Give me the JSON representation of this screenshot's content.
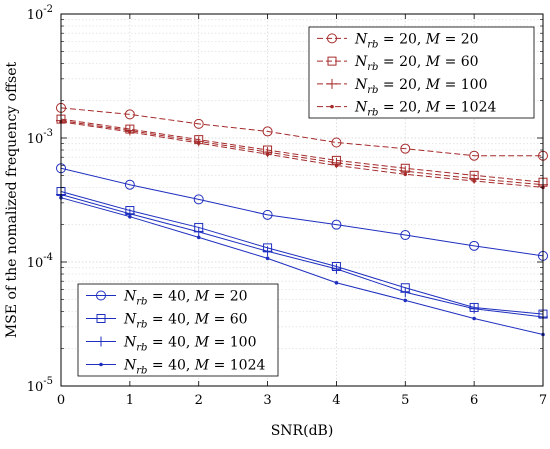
{
  "chart_data": {
    "type": "line",
    "xlabel": "SNR(dB)",
    "ylabel": "MSE of the nomalized frequency offset",
    "x": [
      0,
      1,
      2,
      3,
      4,
      5,
      6,
      7
    ],
    "xticks": [
      "0",
      "1",
      "2",
      "3",
      "4",
      "5",
      "6",
      "7"
    ],
    "xlim": [
      0,
      7
    ],
    "ylim": [
      1e-05,
      0.01
    ],
    "yscale": "log",
    "yticks": [
      {
        "value": 1e-05,
        "base": "10",
        "exp": "-5"
      },
      {
        "value": 0.0001,
        "base": "10",
        "exp": "-4"
      },
      {
        "value": 0.001,
        "base": "10",
        "exp": "-3"
      },
      {
        "value": 0.01,
        "base": "10",
        "exp": "-2"
      }
    ],
    "grid": true,
    "legends": [
      {
        "placement": "top-right",
        "series": [
          0,
          1,
          2,
          3
        ]
      },
      {
        "placement": "bottom-left",
        "series": [
          4,
          5,
          6,
          7
        ]
      }
    ],
    "series": [
      {
        "name": "N_rb = 20, M = 20",
        "label": {
          "n": "20",
          "m": "20"
        },
        "color": "#a52a2a",
        "dash": "dashed",
        "marker": "circle",
        "values": [
          0.00175,
          0.00155,
          0.0013,
          0.00113,
          0.00092,
          0.00082,
          0.00072,
          0.00072
        ]
      },
      {
        "name": "N_rb = 20, M = 60",
        "label": {
          "n": "20",
          "m": "60"
        },
        "color": "#a52a2a",
        "dash": "dashed",
        "marker": "square",
        "values": [
          0.00142,
          0.00118,
          0.00097,
          0.0008,
          0.00066,
          0.00057,
          0.0005,
          0.00044
        ]
      },
      {
        "name": "N_rb = 20, M = 100",
        "label": {
          "n": "20",
          "m": "100"
        },
        "color": "#a52a2a",
        "dash": "dashed",
        "marker": "plus",
        "values": [
          0.00138,
          0.00115,
          0.00094,
          0.00077,
          0.00063,
          0.00054,
          0.00047,
          0.00042
        ]
      },
      {
        "name": "N_rb = 20, M = 1024",
        "label": {
          "n": "20",
          "m": "1024"
        },
        "color": "#a52a2a",
        "dash": "dashed",
        "marker": "dot",
        "values": [
          0.00135,
          0.00112,
          0.00091,
          0.00074,
          0.0006,
          0.00051,
          0.00045,
          0.0004
        ]
      },
      {
        "name": "N_rb = 40, M = 20",
        "label": {
          "n": "40",
          "m": "20"
        },
        "color": "#1f2fbf",
        "dash": "solid",
        "marker": "circle",
        "values": [
          0.00057,
          0.00042,
          0.00032,
          0.00024,
          0.0002,
          0.000165,
          0.000135,
          0.000112
        ]
      },
      {
        "name": "N_rb = 40, M = 60",
        "label": {
          "n": "40",
          "m": "60"
        },
        "color": "#1f2fbf",
        "dash": "solid",
        "marker": "square",
        "values": [
          0.00037,
          0.00026,
          0.00019,
          0.00013,
          9.2e-05,
          6.2e-05,
          4.3e-05,
          3.8e-05
        ]
      },
      {
        "name": "N_rb = 40, M = 100",
        "label": {
          "n": "40",
          "m": "100"
        },
        "color": "#1f2fbf",
        "dash": "solid",
        "marker": "plus",
        "values": [
          0.00035,
          0.000245,
          0.000175,
          0.000122,
          8.8e-05,
          5.7e-05,
          4.2e-05,
          3.6e-05
        ]
      },
      {
        "name": "N_rb = 40, M = 1024",
        "label": {
          "n": "40",
          "m": "1024"
        },
        "color": "#1f2fbf",
        "dash": "solid",
        "marker": "dot",
        "values": [
          0.00033,
          0.000232,
          0.000158,
          0.000107,
          6.8e-05,
          4.9e-05,
          3.5e-05,
          2.6e-05
        ]
      }
    ]
  }
}
